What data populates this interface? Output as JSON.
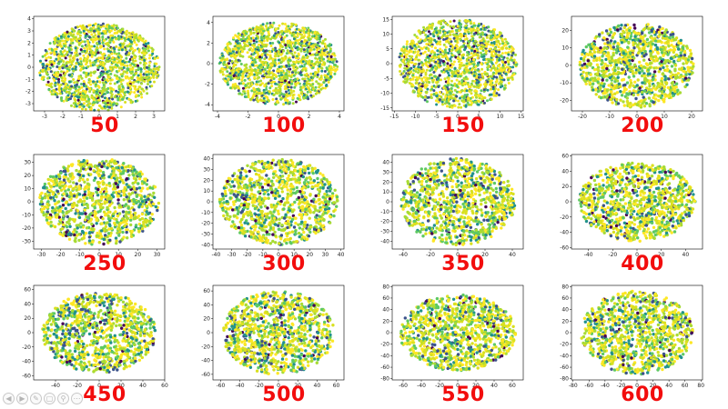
{
  "colors": {
    "label": "#f20d0d",
    "axis": "#000000",
    "points": [
      "#440154",
      "#3b528b",
      "#21918c",
      "#5ec962",
      "#a8db34",
      "#d9e021",
      "#fde725"
    ]
  },
  "navigation": {
    "icons": [
      "play-back-icon",
      "play-forward-icon",
      "pen-icon",
      "slides-icon",
      "zoom-icon",
      "more-icon"
    ]
  },
  "chart_data": [
    {
      "type": "scatter",
      "label": "50",
      "shape": "ellipse",
      "xlim": [
        -3.6,
        3.6
      ],
      "ylim": [
        -3.6,
        4.2
      ],
      "xticks": [
        -3,
        -2,
        -1,
        0,
        1,
        2,
        3
      ],
      "yticks": [
        -3,
        -2,
        -1,
        0,
        1,
        2,
        3,
        4
      ],
      "cluster_extent": [
        3.3,
        3.6
      ],
      "grid": false
    },
    {
      "type": "scatter",
      "label": "100",
      "shape": "ellipse",
      "xlim": [
        -4.3,
        4.3
      ],
      "ylim": [
        -4.6,
        4.6
      ],
      "xticks": [
        -4,
        -2,
        0,
        2,
        4
      ],
      "yticks": [
        -4,
        -2,
        0,
        2,
        4
      ],
      "cluster_extent": [
        3.9,
        4.0
      ],
      "grid": false
    },
    {
      "type": "scatter",
      "label": "150",
      "shape": "ellipse",
      "xlim": [
        -15.5,
        15.5
      ],
      "ylim": [
        -16,
        16
      ],
      "xticks": [
        -15,
        -10,
        -5,
        0,
        5,
        10,
        15
      ],
      "yticks": [
        -15,
        -10,
        -5,
        0,
        5,
        10,
        15
      ],
      "cluster_extent": [
        14,
        15
      ],
      "grid": false
    },
    {
      "type": "scatter",
      "label": "200",
      "shape": "clusters",
      "xlim": [
        -24,
        24
      ],
      "ylim": [
        -26,
        28
      ],
      "xticks": [
        -20,
        -10,
        0,
        10,
        20
      ],
      "yticks": [
        -20,
        -10,
        0,
        10,
        20
      ],
      "cluster_extent": [
        21,
        24
      ],
      "grid": false
    },
    {
      "type": "scatter",
      "label": "250",
      "shape": "clusters",
      "xlim": [
        -34,
        34
      ],
      "ylim": [
        -36,
        36
      ],
      "xticks": [
        -30,
        -20,
        -10,
        0,
        10,
        20,
        30
      ],
      "yticks": [
        -30,
        -20,
        -10,
        0,
        10,
        20,
        30
      ],
      "cluster_extent": [
        31,
        33
      ],
      "grid": false
    },
    {
      "type": "scatter",
      "label": "300",
      "shape": "clusters",
      "xlim": [
        -42,
        42
      ],
      "ylim": [
        -44,
        44
      ],
      "xticks": [
        -40,
        -30,
        -20,
        -10,
        0,
        10,
        20,
        30,
        40
      ],
      "yticks": [
        -40,
        -30,
        -20,
        -10,
        0,
        10,
        20,
        30,
        40
      ],
      "cluster_extent": [
        38,
        40
      ],
      "grid": false
    },
    {
      "type": "scatter",
      "label": "350",
      "shape": "clusters",
      "xlim": [
        -48,
        48
      ],
      "ylim": [
        -48,
        48
      ],
      "xticks": [
        -40,
        -20,
        0,
        20,
        40
      ],
      "yticks": [
        -40,
        -30,
        -20,
        -10,
        0,
        10,
        20,
        30,
        40
      ],
      "cluster_extent": [
        42,
        44
      ],
      "grid": false
    },
    {
      "type": "scatter",
      "label": "400",
      "shape": "clusters",
      "xlim": [
        -54,
        54
      ],
      "ylim": [
        -62,
        62
      ],
      "xticks": [
        -40,
        -20,
        0,
        20,
        40
      ],
      "yticks": [
        -60,
        -40,
        -20,
        0,
        20,
        40,
        60
      ],
      "cluster_extent": [
        48,
        52
      ],
      "grid": false
    },
    {
      "type": "scatter",
      "label": "450",
      "shape": "clusters",
      "xlim": [
        -60,
        60
      ],
      "ylim": [
        -66,
        66
      ],
      "xticks": [
        -40,
        -20,
        0,
        20,
        40,
        60
      ],
      "yticks": [
        -60,
        -40,
        -20,
        0,
        20,
        40,
        60
      ],
      "cluster_extent": [
        52,
        56
      ],
      "grid": false
    },
    {
      "type": "scatter",
      "label": "500",
      "shape": "clusters",
      "xlim": [
        -68,
        68
      ],
      "ylim": [
        -68,
        68
      ],
      "xticks": [
        -60,
        -40,
        -20,
        0,
        20,
        40,
        60
      ],
      "yticks": [
        -60,
        -40,
        -20,
        0,
        20,
        40,
        60
      ],
      "cluster_extent": [
        58,
        60
      ],
      "grid": false
    },
    {
      "type": "scatter",
      "label": "550",
      "shape": "clusters",
      "xlim": [
        -72,
        72
      ],
      "ylim": [
        -82,
        82
      ],
      "xticks": [
        -60,
        -40,
        -20,
        0,
        20,
        40,
        60
      ],
      "yticks": [
        -80,
        -60,
        -40,
        -20,
        0,
        20,
        40,
        60,
        80
      ],
      "cluster_extent": [
        64,
        66
      ],
      "grid": false
    },
    {
      "type": "scatter",
      "label": "600",
      "shape": "clusters",
      "xlim": [
        -82,
        82
      ],
      "ylim": [
        -82,
        82
      ],
      "xticks": [
        -80,
        -60,
        -40,
        -20,
        0,
        20,
        40,
        60,
        80
      ],
      "yticks": [
        -80,
        -60,
        -40,
        -20,
        0,
        20,
        40,
        60,
        80
      ],
      "cluster_extent": [
        70,
        72
      ],
      "grid": false
    }
  ]
}
